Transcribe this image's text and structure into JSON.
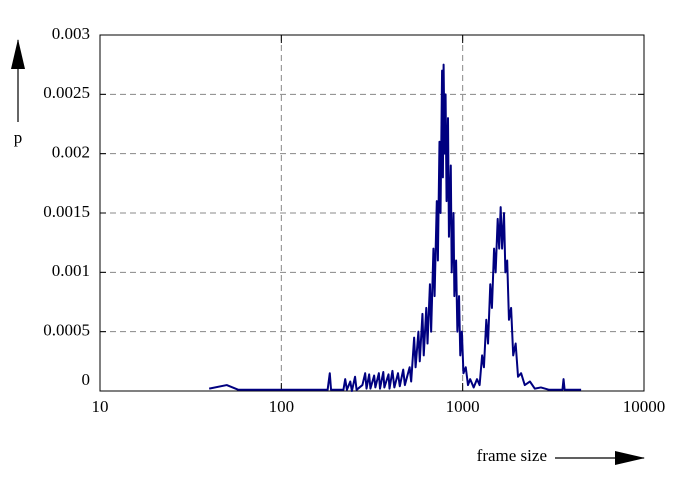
{
  "chart_data": {
    "type": "line",
    "x_label": "frame size",
    "y_label": "p",
    "xlim": [
      10,
      10000
    ],
    "xticks": [
      10,
      100,
      1000,
      10000
    ],
    "x_scale": "log",
    "ylim": [
      0,
      0.003
    ],
    "yticks": [
      0,
      0.0005,
      0.001,
      0.0015,
      0.002,
      0.0025,
      0.003
    ],
    "grid": true,
    "series": [
      {
        "color": "#000080",
        "x": [
          40,
          50,
          58,
          100,
          180,
          185,
          188,
          220,
          225,
          230,
          240,
          245,
          255,
          260,
          280,
          290,
          295,
          305,
          310,
          325,
          330,
          345,
          350,
          365,
          370,
          390,
          395,
          410,
          420,
          440,
          450,
          470,
          480,
          510,
          520,
          540,
          550,
          570,
          580,
          600,
          610,
          630,
          640,
          660,
          670,
          690,
          700,
          720,
          730,
          745,
          755,
          770,
          778,
          785,
          795,
          805,
          815,
          830,
          840,
          860,
          870,
          890,
          900,
          920,
          935,
          955,
          970,
          990,
          1010,
          1040,
          1070,
          1100,
          1150,
          1200,
          1240,
          1280,
          1310,
          1350,
          1380,
          1420,
          1450,
          1490,
          1520,
          1560,
          1590,
          1620,
          1650,
          1690,
          1720,
          1760,
          1800,
          1850,
          1900,
          1960,
          2020,
          2100,
          2200,
          2350,
          2500,
          2700,
          3000,
          3550,
          3600,
          3650,
          4500
        ],
        "values": [
          2e-05,
          5e-05,
          1e-05,
          1e-05,
          1e-05,
          0.00015,
          1e-05,
          1e-05,
          0.0001,
          1e-05,
          8e-05,
          0,
          0.00012,
          1e-05,
          5e-05,
          0.00015,
          2e-05,
          0.00014,
          2e-05,
          0.00013,
          3e-05,
          0.00015,
          2e-05,
          0.00016,
          3e-05,
          0.00014,
          2e-05,
          0.00017,
          3e-05,
          0.00015,
          4e-05,
          0.00018,
          5e-05,
          0.0002,
          8e-05,
          0.00045,
          0.0002,
          0.0005,
          0.00025,
          0.00065,
          0.0003,
          0.0007,
          0.0004,
          0.0009,
          0.0005,
          0.0012,
          0.0008,
          0.0016,
          0.0011,
          0.0021,
          0.0015,
          0.0027,
          0.0018,
          0.00275,
          0.002,
          0.0025,
          0.0016,
          0.0023,
          0.0013,
          0.0019,
          0.001,
          0.0015,
          0.0008,
          0.0011,
          0.0005,
          0.0008,
          0.0003,
          0.0005,
          0.00015,
          0.0002,
          5e-05,
          0.0001,
          3e-05,
          0.0001,
          5e-05,
          0.0003,
          0.0002,
          0.0006,
          0.0004,
          0.0009,
          0.0007,
          0.0012,
          0.001,
          0.00145,
          0.0012,
          0.00155,
          0.0012,
          0.0015,
          0.001,
          0.0011,
          0.0006,
          0.0007,
          0.0003,
          0.0004,
          0.00012,
          0.00015,
          5e-05,
          8e-05,
          2e-05,
          3e-05,
          1e-05,
          1e-05,
          0.0001,
          1e-05,
          1e-05
        ]
      }
    ]
  }
}
